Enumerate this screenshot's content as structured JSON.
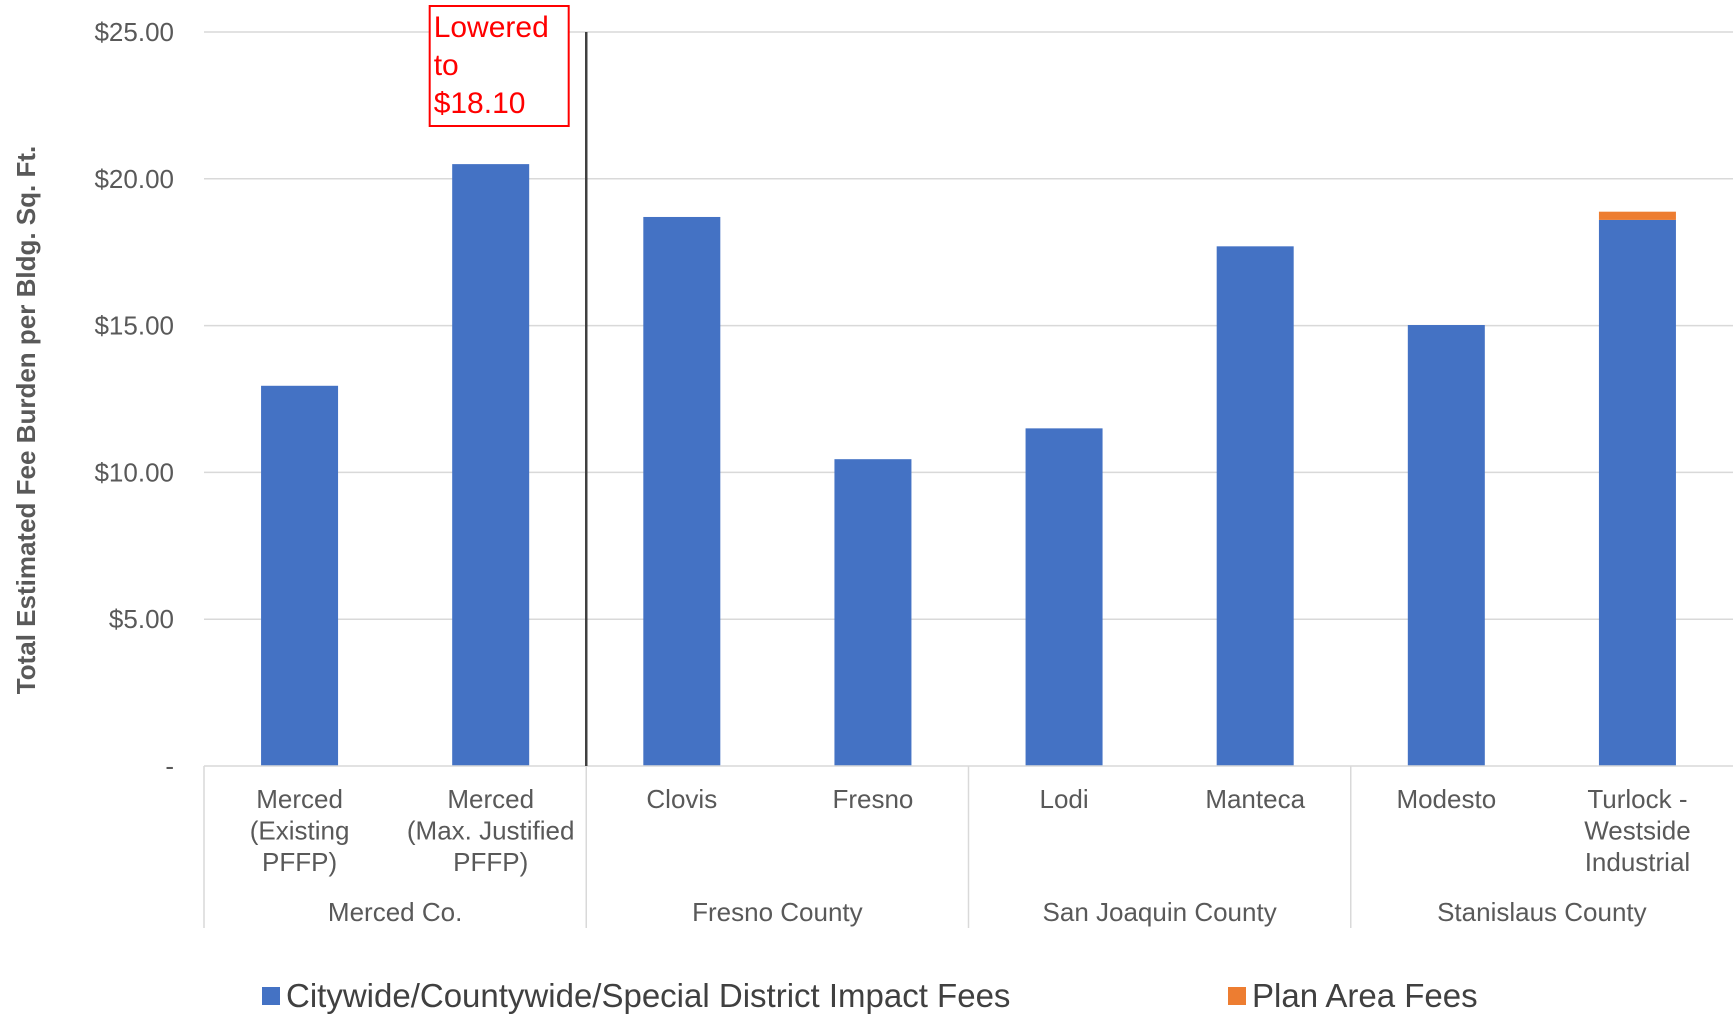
{
  "chart_data": {
    "type": "bar",
    "stacked": true,
    "ylabel": "Total Estimated Fee Burden per Bldg. Sq. Ft.",
    "xlabel": "",
    "ylim": [
      0,
      25
    ],
    "yticks": [
      {
        "value": 0,
        "label": "-"
      },
      {
        "value": 5,
        "label": "$5.00"
      },
      {
        "value": 10,
        "label": "$10.00"
      },
      {
        "value": 15,
        "label": "$15.00"
      },
      {
        "value": 20,
        "label": "$20.00"
      },
      {
        "value": 25,
        "label": "$25.00"
      }
    ],
    "grid": true,
    "categories": [
      {
        "lines": [
          "Merced",
          "(Existing",
          "PFFP)"
        ],
        "group": "Merced Co."
      },
      {
        "lines": [
          "Merced",
          "(Max. Justified",
          "PFFP)"
        ],
        "group": "Merced Co."
      },
      {
        "lines": [
          "Clovis"
        ],
        "group": "Fresno County"
      },
      {
        "lines": [
          "Fresno"
        ],
        "group": "Fresno County"
      },
      {
        "lines": [
          "Lodi"
        ],
        "group": "San Joaquin County"
      },
      {
        "lines": [
          "Manteca"
        ],
        "group": "San Joaquin County"
      },
      {
        "lines": [
          "Modesto"
        ],
        "group": "Stanislaus County"
      },
      {
        "lines": [
          "Turlock -",
          "Westside",
          "Industrial"
        ],
        "group": "Stanislaus County"
      }
    ],
    "groups": [
      "Merced Co.",
      "Fresno County",
      "San Joaquin County",
      "Stanislaus County"
    ],
    "series": [
      {
        "name": "Citywide/Countywide/Special District Impact Fees",
        "color": "#4472C4",
        "values": [
          12.95,
          20.5,
          18.7,
          10.45,
          11.5,
          17.7,
          15.02,
          18.6
        ]
      },
      {
        "name": "Plan Area Fees",
        "color": "#ED7D31",
        "values": [
          0,
          0,
          0,
          0,
          0,
          0,
          0,
          0.28
        ]
      }
    ],
    "legend_position": "bottom",
    "annotation": {
      "lines": [
        "Lowered",
        "to",
        "$18.10"
      ],
      "category_index": 1,
      "color": "#ff0000"
    },
    "divider_after_category": 1
  }
}
